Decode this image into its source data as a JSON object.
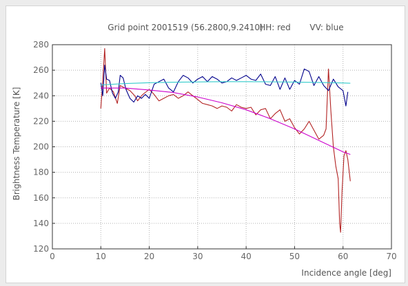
{
  "chart_data": {
    "type": "line",
    "title": "Grid point 2001519 (56.2800,9.2410)",
    "legend_text": [
      "HH: red",
      "VV: blue"
    ],
    "xlabel": "Incidence angle [deg]",
    "ylabel": "Brightness Temperature [K]",
    "xlim": [
      0,
      70
    ],
    "ylim": [
      120,
      280
    ],
    "xticks": [
      0,
      10,
      20,
      30,
      40,
      50,
      60,
      70
    ],
    "yticks": [
      120,
      140,
      160,
      180,
      200,
      220,
      240,
      260,
      280
    ],
    "grid": true,
    "series": [
      {
        "color": "#b22222",
        "points": [
          [
            10.0,
            230
          ],
          [
            10.4,
            252
          ],
          [
            10.8,
            277
          ],
          [
            11.2,
            242
          ],
          [
            11.8,
            246
          ],
          [
            12.6,
            243
          ],
          [
            13.4,
            234
          ],
          [
            14.0,
            248
          ],
          [
            15.0,
            246
          ],
          [
            16.0,
            244
          ],
          [
            17.0,
            240
          ],
          [
            17.6,
            236
          ],
          [
            18.4,
            240
          ],
          [
            19.0,
            242
          ],
          [
            20.0,
            245
          ],
          [
            21.0,
            241
          ],
          [
            22.0,
            236
          ],
          [
            23.0,
            238
          ],
          [
            24.0,
            240
          ],
          [
            25.0,
            241
          ],
          [
            26.0,
            238
          ],
          [
            27.0,
            240
          ],
          [
            28.0,
            243
          ],
          [
            29.0,
            240
          ],
          [
            30.0,
            237
          ],
          [
            31.0,
            234
          ],
          [
            32.0,
            233
          ],
          [
            33.0,
            232
          ],
          [
            34.0,
            230
          ],
          [
            35.0,
            232
          ],
          [
            36.0,
            231
          ],
          [
            37.0,
            228
          ],
          [
            38.0,
            233
          ],
          [
            39.0,
            231
          ],
          [
            40.0,
            230
          ],
          [
            41.0,
            231
          ],
          [
            42.0,
            225
          ],
          [
            43.0,
            229
          ],
          [
            44.0,
            230
          ],
          [
            45.0,
            222
          ],
          [
            46.0,
            226
          ],
          [
            47.0,
            229
          ],
          [
            48.0,
            220
          ],
          [
            49.0,
            222
          ],
          [
            50.0,
            215
          ],
          [
            51.0,
            210
          ],
          [
            52.0,
            214
          ],
          [
            53.0,
            220
          ],
          [
            54.0,
            213
          ],
          [
            55.0,
            206
          ],
          [
            56.0,
            209
          ],
          [
            56.5,
            214
          ],
          [
            57.0,
            261
          ],
          [
            57.5,
            228
          ],
          [
            58.0,
            200
          ],
          [
            58.5,
            185
          ],
          [
            59.0,
            175
          ],
          [
            59.3,
            140
          ],
          [
            59.5,
            133
          ],
          [
            59.8,
            165
          ],
          [
            60.2,
            193
          ],
          [
            60.6,
            197
          ],
          [
            61.0,
            190
          ],
          [
            61.5,
            173
          ]
        ]
      },
      {
        "color": "#00008b",
        "points": [
          [
            10.0,
            250
          ],
          [
            10.4,
            240
          ],
          [
            10.8,
            264
          ],
          [
            11.2,
            253
          ],
          [
            11.8,
            252
          ],
          [
            12.4,
            242
          ],
          [
            13.0,
            238
          ],
          [
            13.6,
            243
          ],
          [
            14.0,
            256
          ],
          [
            14.6,
            254
          ],
          [
            15.2,
            245
          ],
          [
            16.0,
            238
          ],
          [
            16.8,
            235
          ],
          [
            17.6,
            240
          ],
          [
            18.4,
            238
          ],
          [
            19.2,
            241
          ],
          [
            20.0,
            238
          ],
          [
            21.0,
            249
          ],
          [
            22.0,
            251
          ],
          [
            23.0,
            253
          ],
          [
            24.0,
            246
          ],
          [
            25.0,
            243
          ],
          [
            26.0,
            251
          ],
          [
            27.0,
            256
          ],
          [
            28.0,
            254
          ],
          [
            29.0,
            250
          ],
          [
            30.0,
            253
          ],
          [
            31.0,
            255
          ],
          [
            32.0,
            251
          ],
          [
            33.0,
            255
          ],
          [
            34.0,
            253
          ],
          [
            35.0,
            250
          ],
          [
            36.0,
            251
          ],
          [
            37.0,
            254
          ],
          [
            38.0,
            252
          ],
          [
            39.0,
            254
          ],
          [
            40.0,
            256
          ],
          [
            41.0,
            253
          ],
          [
            42.0,
            252
          ],
          [
            43.0,
            257
          ],
          [
            44.0,
            249
          ],
          [
            45.0,
            248
          ],
          [
            46.0,
            255
          ],
          [
            47.0,
            245
          ],
          [
            48.0,
            254
          ],
          [
            49.0,
            245
          ],
          [
            50.0,
            252
          ],
          [
            51.0,
            249
          ],
          [
            52.0,
            261
          ],
          [
            53.0,
            259
          ],
          [
            54.0,
            248
          ],
          [
            55.0,
            255
          ],
          [
            56.0,
            248
          ],
          [
            57.0,
            244
          ],
          [
            58.0,
            253
          ],
          [
            59.0,
            247
          ],
          [
            60.0,
            244
          ],
          [
            60.6,
            232
          ],
          [
            61.0,
            243
          ]
        ]
      },
      {
        "color": "#cc00cc",
        "points": [
          [
            10.0,
            246
          ],
          [
            15.0,
            246
          ],
          [
            20.0,
            244.5
          ],
          [
            25.0,
            242.5
          ],
          [
            30.0,
            239
          ],
          [
            35.0,
            234.5
          ],
          [
            40.0,
            229
          ],
          [
            45.0,
            222
          ],
          [
            50.0,
            214
          ],
          [
            55.0,
            205
          ],
          [
            60.0,
            196
          ],
          [
            61.5,
            194
          ]
        ]
      },
      {
        "color": "#33cccc",
        "points": [
          [
            10.0,
            248.5
          ],
          [
            15.0,
            249.5
          ],
          [
            20.0,
            250.2
          ],
          [
            25.0,
            250.6
          ],
          [
            30.0,
            250.8
          ],
          [
            35.0,
            251
          ],
          [
            40.0,
            251
          ],
          [
            45.0,
            250.9
          ],
          [
            50.0,
            250.7
          ],
          [
            55.0,
            250.4
          ],
          [
            60.0,
            250
          ],
          [
            61.5,
            249.8
          ]
        ]
      }
    ]
  }
}
